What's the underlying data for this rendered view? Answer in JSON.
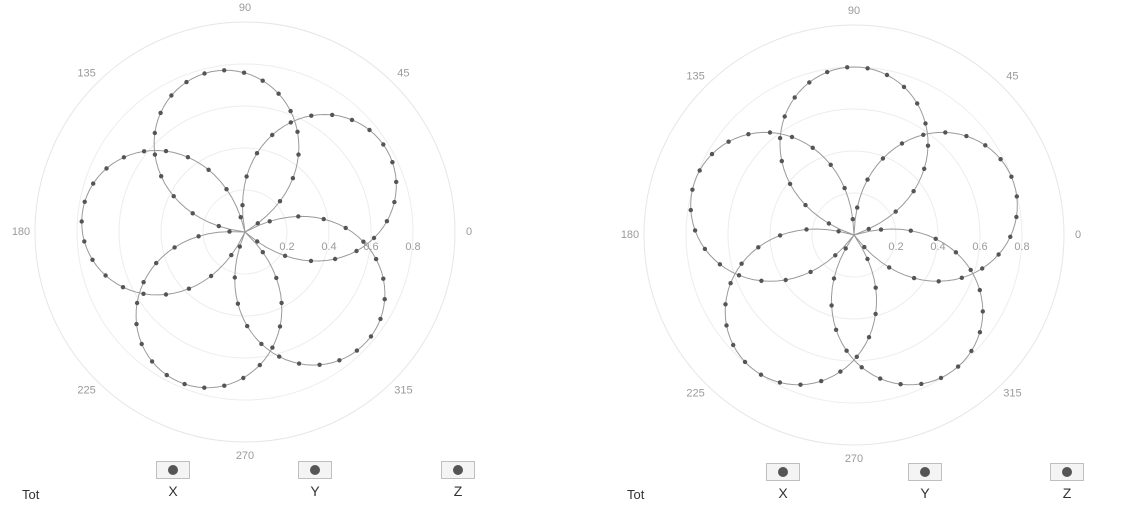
{
  "panels": [
    {
      "chart_data": {
        "type": "scatter",
        "subtype": "polar",
        "angle_ticks": [
          "0",
          "45",
          "90",
          "135",
          "180",
          "225",
          "270",
          "315"
        ],
        "radial_ticks": [
          "0.2",
          "0.4",
          "0.6",
          "0.8"
        ],
        "rlim": [
          0,
          1
        ],
        "grid": true,
        "series": [
          {
            "petal_angle_deg": 30
          },
          {
            "petal_angle_deg": 102
          },
          {
            "petal_angle_deg": 174
          },
          {
            "petal_angle_deg": 246
          },
          {
            "petal_angle_deg": 318
          }
        ],
        "petal_max_r": 0.78
      },
      "legend": {
        "tot_label": "Tot",
        "items": [
          {
            "label": "X"
          },
          {
            "label": "Y"
          },
          {
            "label": "Z"
          }
        ]
      }
    },
    {
      "chart_data": {
        "type": "scatter",
        "subtype": "polar",
        "angle_ticks": [
          "0",
          "45",
          "90",
          "135",
          "180",
          "225",
          "270",
          "315"
        ],
        "radial_ticks": [
          "0.2",
          "0.4",
          "0.6",
          "0.8"
        ],
        "rlim": [
          0,
          1
        ],
        "grid": true,
        "series": [
          {
            "petal_angle_deg": 18
          },
          {
            "petal_angle_deg": 90
          },
          {
            "petal_angle_deg": 162
          },
          {
            "petal_angle_deg": 234
          },
          {
            "petal_angle_deg": 306
          }
        ],
        "petal_max_r": 0.8
      },
      "legend": {
        "tot_label": "Tot",
        "items": [
          {
            "label": "X"
          },
          {
            "label": "Y"
          },
          {
            "label": "Z"
          }
        ]
      }
    }
  ],
  "colors": {
    "points": "#555555",
    "curve": "#9a9a9a",
    "grid": "#ededed"
  }
}
